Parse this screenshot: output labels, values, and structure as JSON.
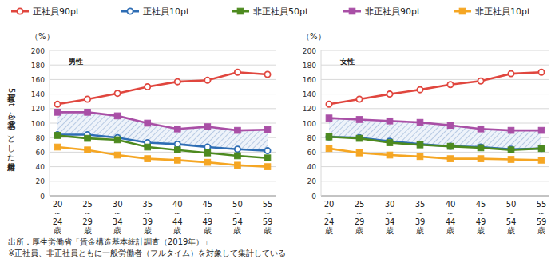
{
  "chart_data": [
    {
      "type": "line",
      "title": "男性",
      "ylabel": "正社員50ptを基準（100）とした相対所得",
      "y_unit": "（%）",
      "categories": [
        "20～24歳",
        "25～29歳",
        "30～34歳",
        "35～39歳",
        "40～44歳",
        "45～49歳",
        "50～54歳",
        "55～59歳"
      ],
      "ylim": [
        0,
        200
      ],
      "yticks": [
        0,
        20,
        40,
        60,
        80,
        100,
        120,
        140,
        160,
        180,
        200
      ],
      "grid": true,
      "legend": "top",
      "series": [
        {
          "name": "正社員90pt",
          "color": "#e0463e",
          "marker": "open_circle",
          "values": [
            126,
            133,
            141,
            150,
            157,
            159,
            170,
            167
          ]
        },
        {
          "name": "正社員10pt",
          "color": "#2e6db4",
          "marker": "open_circle",
          "values": [
            84,
            84,
            80,
            73,
            71,
            67,
            64,
            62
          ]
        },
        {
          "name": "非正社員50pt",
          "color": "#4d8a1f",
          "marker": "square",
          "values": [
            83,
            79,
            77,
            67,
            63,
            59,
            55,
            52
          ]
        },
        {
          "name": "非正社員90pt",
          "color": "#a94fa6",
          "marker": "square",
          "values": [
            115,
            115,
            110,
            100,
            92,
            95,
            90,
            91
          ]
        },
        {
          "name": "非正社員10pt",
          "color": "#f5a623",
          "marker": "square",
          "values": [
            67,
            63,
            56,
            51,
            49,
            46,
            42,
            40
          ]
        }
      ]
    },
    {
      "type": "line",
      "title": "女性",
      "y_unit": "（%）",
      "categories": [
        "20～24歳",
        "25～29歳",
        "30～34歳",
        "35～39歳",
        "40～44歳",
        "45～49歳",
        "50～54歳",
        "55～59歳"
      ],
      "ylim": [
        0,
        200
      ],
      "yticks": [
        0,
        20,
        40,
        60,
        80,
        100,
        120,
        140,
        160,
        180,
        200
      ],
      "grid": true,
      "series": [
        {
          "name": "正社員90pt",
          "color": "#e0463e",
          "marker": "open_circle",
          "values": [
            126,
            133,
            140,
            146,
            153,
            158,
            168,
            170
          ]
        },
        {
          "name": "正社員10pt",
          "color": "#2e6db4",
          "marker": "open_circle",
          "values": [
            81,
            80,
            75,
            71,
            68,
            67,
            64,
            65
          ]
        },
        {
          "name": "非正社員50pt",
          "color": "#4d8a1f",
          "marker": "square",
          "values": [
            81,
            79,
            73,
            70,
            68,
            66,
            63,
            65
          ]
        },
        {
          "name": "非正社員90pt",
          "color": "#a94fa6",
          "marker": "square",
          "values": [
            107,
            105,
            103,
            101,
            97,
            92,
            90,
            90
          ]
        },
        {
          "name": "非正社員10pt",
          "color": "#f5a623",
          "marker": "square",
          "values": [
            65,
            59,
            56,
            54,
            51,
            51,
            50,
            49
          ]
        }
      ]
    }
  ],
  "footnotes": [
    "出所：厚生労働省「賃金構造基本統計調査（2019年）」",
    "※正社員、非正社員ともに一般労働者（フルタイム）を対象して集計している"
  ]
}
